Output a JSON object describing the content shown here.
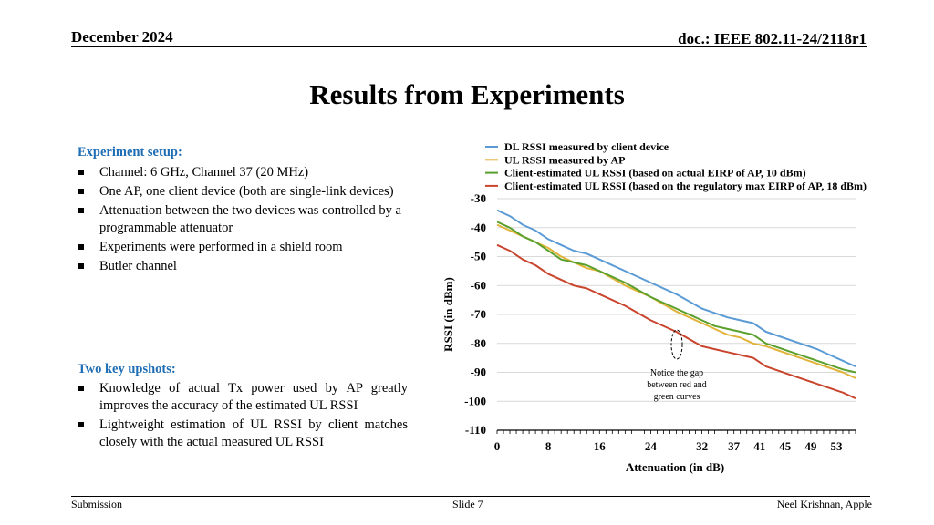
{
  "header": {
    "date": "December 2024",
    "doc": "doc.: IEEE 802.11-24/2118r1"
  },
  "title": "Results from Experiments",
  "setup": {
    "heading": "Experiment setup:",
    "items": [
      "Channel: 6 GHz, Channel 37 (20 MHz)",
      "One AP, one client device (both are single-link devices)",
      "Attenuation between the two devices was controlled by a programmable attenuator",
      "Experiments were performed in a shield room",
      "Butler channel"
    ]
  },
  "upshots": {
    "heading": "Two key upshots:",
    "items": [
      "Knowledge of actual Tx power used by AP greatly improves the accuracy of the estimated UL RSSI",
      "Lightweight estimation of UL RSSI by client matches closely with the actual measured UL RSSI"
    ]
  },
  "footer": {
    "left": "Submission",
    "center": "Slide 7",
    "right": "Neel Krishnan, Apple"
  },
  "colors": {
    "accent": "#1f6eb5",
    "dl": "#5b9bd5",
    "ul": "#e0b33a",
    "green": "#5aa02c",
    "red": "#c9452d"
  },
  "chart_data": {
    "type": "line",
    "xlabel": "Attenuation (in dB)",
    "ylabel": "RSSI (in dBm)",
    "xlim": [
      0,
      56
    ],
    "ylim": [
      -110,
      -30
    ],
    "x_ticks": [
      "0",
      "8",
      "16",
      "24",
      "32",
      "37",
      "41",
      "45",
      "49",
      "53"
    ],
    "x_tick_values": [
      0,
      8,
      16,
      24,
      32,
      37,
      41,
      45,
      49,
      53
    ],
    "y_ticks": [
      "-30",
      "-40",
      "-50",
      "-60",
      "-70",
      "-80",
      "-90",
      "-100",
      "-110"
    ],
    "y_tick_values": [
      -30,
      -40,
      -50,
      -60,
      -70,
      -80,
      -90,
      -100,
      -110
    ],
    "grid": "horizontal",
    "legend_position": "top",
    "series": [
      {
        "name": "DL RSSI measured by client device",
        "color": "#5b9bd5",
        "x": [
          0,
          2,
          4,
          6,
          8,
          10,
          12,
          14,
          16,
          20,
          24,
          28,
          32,
          34,
          36,
          38,
          40,
          42,
          46,
          50,
          52,
          54,
          56
        ],
        "y": [
          -34,
          -36,
          -39,
          -41,
          -44,
          -46,
          -48,
          -49,
          -51,
          -55,
          -59,
          -63,
          -68,
          -69.5,
          -71,
          -72,
          -73,
          -76,
          -79,
          -82,
          -84,
          -86,
          -88
        ]
      },
      {
        "name": "UL RSSI measured by AP",
        "color": "#e0b33a",
        "x": [
          0,
          2,
          4,
          6,
          8,
          10,
          12,
          14,
          16,
          20,
          24,
          28,
          32,
          34,
          36,
          38,
          40,
          42,
          46,
          50,
          54,
          56
        ],
        "y": [
          -39,
          -41,
          -43,
          -45,
          -47,
          -50,
          -52,
          -54,
          -55,
          -60,
          -64,
          -69,
          -73,
          -75,
          -77,
          -78,
          -80,
          -81,
          -84,
          -87,
          -90,
          -92
        ]
      },
      {
        "name": "Client-estimated UL RSSI (based on actual EIRP of AP, 10 dBm)",
        "color": "#5aa02c",
        "x": [
          0,
          2,
          4,
          6,
          8,
          10,
          12,
          14,
          16,
          20,
          24,
          28,
          32,
          34,
          36,
          38,
          40,
          42,
          46,
          50,
          54,
          56
        ],
        "y": [
          -38,
          -40,
          -43,
          -45,
          -48,
          -51,
          -52,
          -53,
          -55,
          -59,
          -64,
          -68,
          -72,
          -74,
          -75,
          -76,
          -77,
          -80,
          -83,
          -86,
          -89,
          -90
        ]
      },
      {
        "name": "Client-estimated UL RSSI (based on the regulatory max EIRP of AP, 18 dBm)",
        "color": "#c9452d",
        "x": [
          0,
          2,
          4,
          6,
          8,
          10,
          12,
          14,
          16,
          20,
          24,
          28,
          32,
          34,
          36,
          38,
          40,
          42,
          46,
          50,
          54,
          56
        ],
        "y": [
          -46,
          -48,
          -51,
          -53,
          -56,
          -58,
          -60,
          -61,
          -63,
          -67,
          -72,
          -76,
          -81,
          -82,
          -83,
          -84,
          -85,
          -88,
          -91,
          -94,
          -97,
          -99
        ]
      }
    ],
    "annotations": [
      "Notice the gap",
      "between red and",
      "green curves"
    ]
  }
}
